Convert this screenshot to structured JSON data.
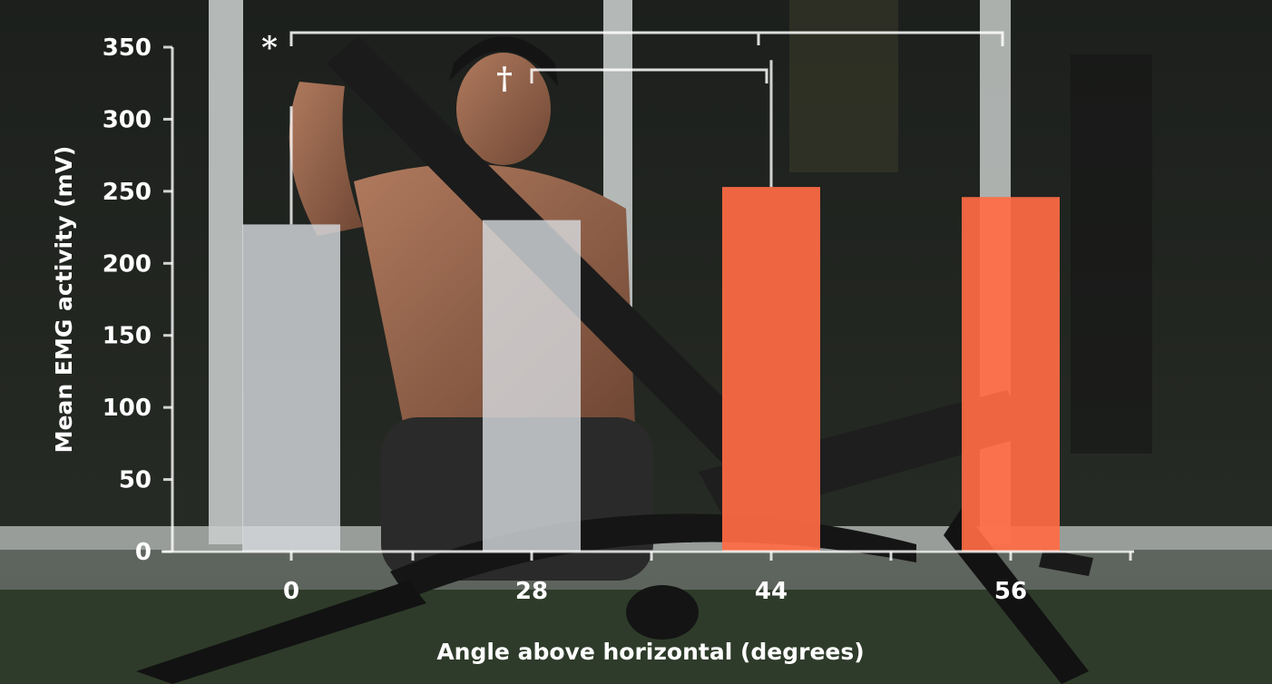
{
  "chart_data": {
    "type": "bar",
    "categories": [
      "0",
      "28",
      "44",
      "56"
    ],
    "values": [
      227,
      230,
      253,
      246
    ],
    "errors": [
      82,
      0,
      88,
      0
    ],
    "xlabel": "Angle above horizontal (degrees)",
    "ylabel": "Mean EMG activity (mV)",
    "ylim": [
      0,
      350
    ],
    "yticks": [
      0,
      50,
      100,
      150,
      200,
      250,
      300,
      350
    ],
    "bar_colors": [
      "#d6d9dd",
      "#d6d9dd",
      "#ff6b44",
      "#ff6b44"
    ],
    "grid": false,
    "significance": [
      {
        "symbol": "*",
        "from": "0",
        "to": "56"
      },
      {
        "symbol": "†",
        "from": "28",
        "to": "44"
      }
    ]
  },
  "colors": {
    "axis": "#ffffff",
    "highlight": "#ff6b44",
    "baseline": "#d6d9dd"
  }
}
